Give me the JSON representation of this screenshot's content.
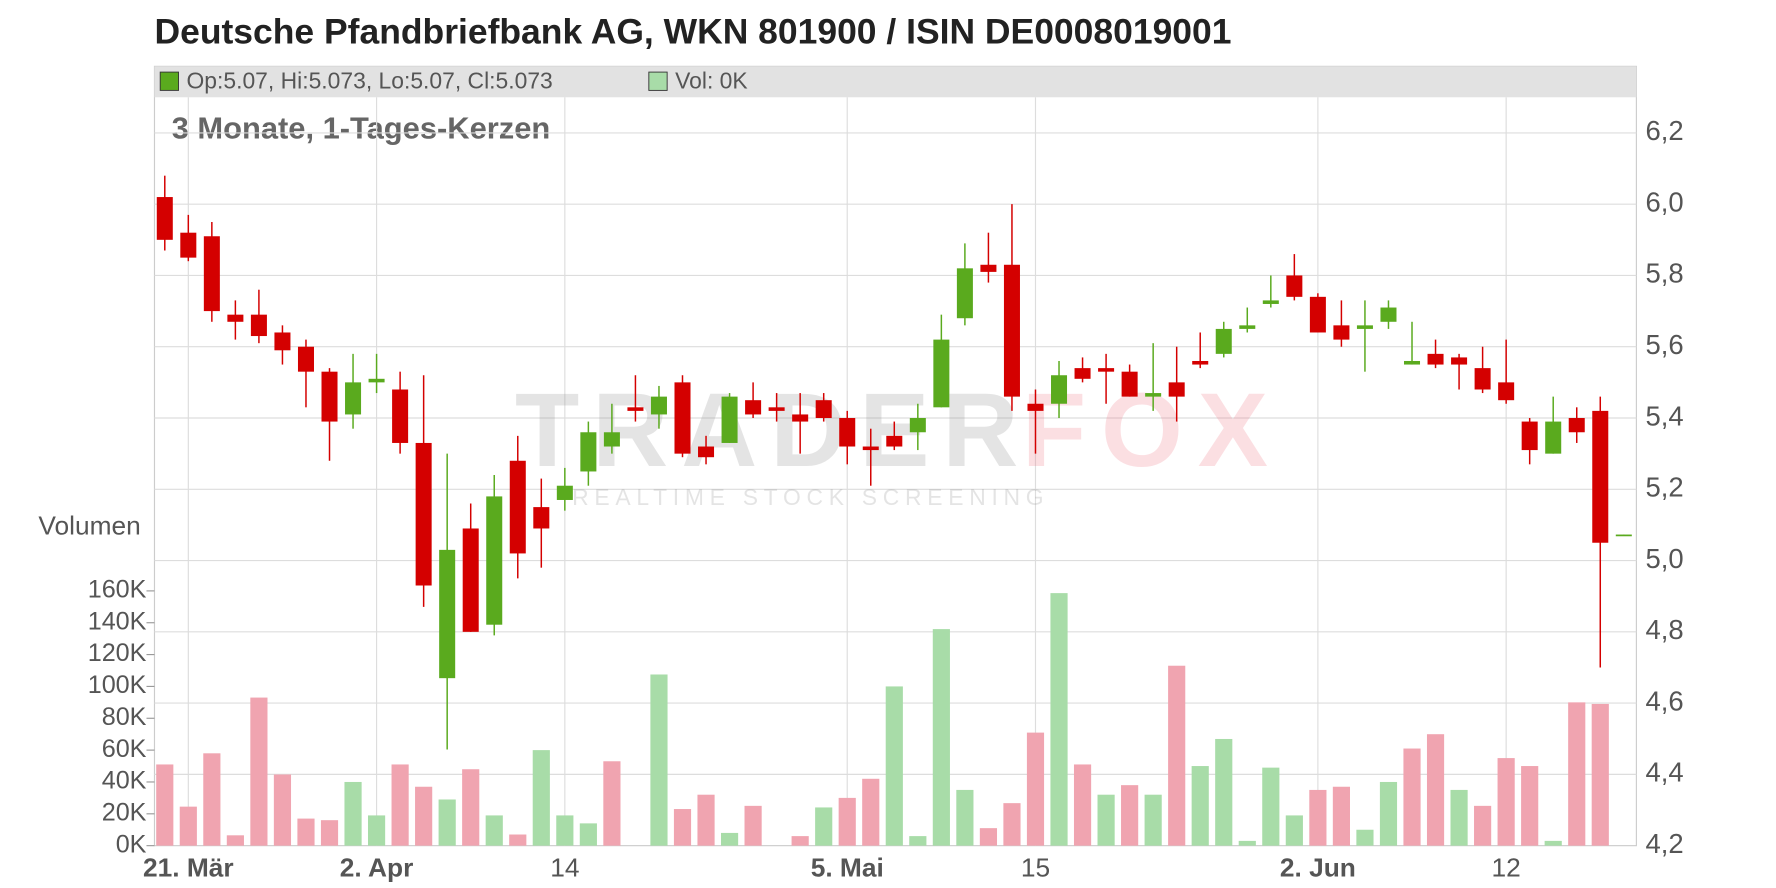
{
  "chart_data": {
    "type": "candlestick",
    "title": "Deutsche Pfandbriefbank AG, WKN 801900 / ISIN DE0008019001",
    "subtitle": "3 Monate, 1-Tages-Kerzen",
    "legend": [
      "Op:5.07, Hi:5.073, Lo:5.07, Cl:5.073",
      "Vol: 0K"
    ],
    "legend_colors": [
      "#5aaa1e",
      "#a8dca8"
    ],
    "volume_label": "Volumen",
    "watermark": [
      "TRADER",
      "FOX",
      "REALTIME STOCK SCREENING"
    ],
    "categories": [
      null,
      "21. Mär",
      null,
      null,
      null,
      null,
      null,
      null,
      null,
      "2. Apr",
      null,
      null,
      null,
      null,
      null,
      null,
      null,
      "14",
      null,
      null,
      null,
      null,
      null,
      null,
      null,
      null,
      null,
      null,
      null,
      "5. Mai",
      null,
      null,
      null,
      null,
      null,
      null,
      null,
      "15",
      null,
      null,
      null,
      null,
      null,
      null,
      null,
      null,
      null,
      null,
      null,
      "2. Jun",
      null,
      null,
      null,
      null,
      null,
      null,
      null,
      "12",
      null,
      null,
      null,
      null,
      null
    ],
    "open": [
      6.02,
      5.92,
      5.91,
      5.69,
      5.69,
      5.64,
      5.6,
      5.53,
      5.41,
      5.5,
      5.48,
      5.33,
      4.67,
      5.09,
      4.82,
      5.28,
      5.15,
      5.17,
      5.25,
      5.32,
      5.43,
      5.41,
      5.5,
      5.32,
      5.33,
      5.45,
      5.43,
      5.41,
      5.45,
      5.4,
      5.32,
      5.35,
      5.36,
      5.43,
      5.68,
      5.83,
      5.83,
      5.44,
      5.44,
      5.54,
      5.54,
      5.53,
      5.46,
      5.5,
      5.56,
      5.58,
      5.65,
      5.72,
      5.8,
      5.74,
      5.66,
      5.65,
      5.67,
      5.55,
      5.58,
      5.57,
      5.54,
      5.5,
      5.39,
      5.3,
      5.4,
      5.42,
      5.07
    ],
    "high": [
      6.08,
      5.97,
      5.95,
      5.73,
      5.76,
      5.66,
      5.62,
      5.54,
      5.58,
      5.58,
      5.53,
      5.52,
      5.3,
      5.16,
      5.24,
      5.35,
      5.23,
      5.26,
      5.39,
      5.44,
      5.52,
      5.49,
      5.52,
      5.35,
      5.47,
      5.5,
      5.47,
      5.47,
      5.47,
      5.42,
      5.37,
      5.39,
      5.44,
      5.69,
      5.89,
      5.92,
      6.0,
      5.48,
      5.56,
      5.57,
      5.58,
      5.55,
      5.61,
      5.6,
      5.64,
      5.67,
      5.71,
      5.8,
      5.86,
      5.75,
      5.73,
      5.73,
      5.73,
      5.67,
      5.62,
      5.58,
      5.6,
      5.62,
      5.4,
      5.46,
      5.43,
      5.46,
      5.073
    ],
    "low": [
      5.87,
      5.84,
      5.67,
      5.62,
      5.61,
      5.55,
      5.43,
      5.28,
      5.37,
      5.47,
      5.3,
      4.87,
      4.47,
      4.8,
      4.79,
      4.95,
      4.98,
      5.14,
      5.21,
      5.3,
      5.39,
      5.37,
      5.29,
      5.27,
      5.33,
      5.4,
      5.39,
      5.3,
      5.39,
      5.27,
      5.21,
      5.31,
      5.31,
      5.43,
      5.66,
      5.78,
      5.42,
      5.3,
      5.4,
      5.5,
      5.44,
      5.46,
      5.42,
      5.39,
      5.54,
      5.57,
      5.64,
      5.71,
      5.73,
      5.64,
      5.6,
      5.53,
      5.65,
      5.55,
      5.54,
      5.48,
      5.47,
      5.44,
      5.27,
      5.3,
      5.33,
      4.7,
      5.07
    ],
    "close": [
      5.9,
      5.85,
      5.7,
      5.67,
      5.63,
      5.59,
      5.53,
      5.39,
      5.5,
      5.51,
      5.33,
      4.93,
      5.03,
      4.8,
      5.18,
      5.02,
      5.09,
      5.21,
      5.36,
      5.36,
      5.42,
      5.46,
      5.3,
      5.29,
      5.46,
      5.41,
      5.42,
      5.39,
      5.4,
      5.32,
      5.31,
      5.32,
      5.4,
      5.62,
      5.82,
      5.81,
      5.46,
      5.42,
      5.52,
      5.51,
      5.53,
      5.46,
      5.47,
      5.46,
      5.55,
      5.65,
      5.66,
      5.73,
      5.74,
      5.64,
      5.62,
      5.66,
      5.71,
      5.56,
      5.55,
      5.55,
      5.48,
      5.45,
      5.31,
      5.39,
      5.36,
      5.05,
      5.073
    ],
    "up_color": "#5aaa1e",
    "down_color": "#d40000",
    "volume": [
      51000,
      24500,
      58000,
      6500,
      93000,
      44700,
      17000,
      16000,
      40000,
      19000,
      51000,
      37000,
      29000,
      48000,
      19000,
      7000,
      60000,
      19000,
      14000,
      53000,
      0,
      107500,
      23000,
      32000,
      8000,
      25000,
      0,
      6000,
      24000,
      30000,
      42000,
      100000,
      6000,
      136000,
      35000,
      11000,
      26700,
      71000,
      158600,
      51000,
      32000,
      38000,
      32000,
      113000,
      50000,
      67000,
      3000,
      49000,
      19000,
      35000,
      37000,
      10000,
      40000,
      61000,
      70000,
      35000,
      25000,
      55000,
      50000,
      3000,
      90000,
      89000,
      0
    ],
    "volume_colors": [
      "#f0a4b0",
      "#f0a4b0",
      "#f0a4b0",
      "#f0a4b0",
      "#f0a4b0",
      "#f0a4b0",
      "#f0a4b0",
      "#f0a4b0",
      "#a8dca8",
      "#a8dca8",
      "#f0a4b0",
      "#f0a4b0",
      "#a8dca8",
      "#f0a4b0",
      "#a8dca8",
      "#f0a4b0",
      "#a8dca8",
      "#a8dca8",
      "#a8dca8",
      "#f0a4b0",
      "#f0a4b0",
      "#a8dca8",
      "#f0a4b0",
      "#f0a4b0",
      "#a8dca8",
      "#f0a4b0",
      "#f0a4b0",
      "#f0a4b0",
      "#a8dca8",
      "#f0a4b0",
      "#f0a4b0",
      "#a8dca8",
      "#a8dca8",
      "#a8dca8",
      "#a8dca8",
      "#f0a4b0",
      "#f0a4b0",
      "#f0a4b0",
      "#a8dca8",
      "#f0a4b0",
      "#a8dca8",
      "#f0a4b0",
      "#a8dca8",
      "#f0a4b0",
      "#a8dca8",
      "#a8dca8",
      "#a8dca8",
      "#a8dca8",
      "#a8dca8",
      "#f0a4b0",
      "#f0a4b0",
      "#a8dca8",
      "#a8dca8",
      "#f0a4b0",
      "#f0a4b0",
      "#a8dca8",
      "#f0a4b0",
      "#f0a4b0",
      "#f0a4b0",
      "#a8dca8",
      "#f0a4b0",
      "#f0a4b0",
      "#a8dca8"
    ],
    "ylim": [
      4.2,
      6.3
    ],
    "yticks": [
      {
        "value": 4.2,
        "label": "4,2"
      },
      {
        "value": 4.4,
        "label": "4,4"
      },
      {
        "value": 4.6,
        "label": "4,6"
      },
      {
        "value": 4.8,
        "label": "4,8"
      },
      {
        "value": 5.0,
        "label": "5,0"
      },
      {
        "value": 5.2,
        "label": "5,2"
      },
      {
        "value": 5.4,
        "label": "5,4"
      },
      {
        "value": 5.6,
        "label": "5,6"
      },
      {
        "value": 5.8,
        "label": "5,8"
      },
      {
        "value": 6.0,
        "label": "6,0"
      },
      {
        "value": 6.2,
        "label": "6,2"
      }
    ],
    "y2lim": [
      0,
      470000
    ],
    "y2ticks": [
      {
        "value": 0,
        "label": "0K"
      },
      {
        "value": 20000,
        "label": "20K"
      },
      {
        "value": 40000,
        "label": "40K"
      },
      {
        "value": 60000,
        "label": "60K"
      },
      {
        "value": 80000,
        "label": "80K"
      },
      {
        "value": 100000,
        "label": "100K"
      },
      {
        "value": 120000,
        "label": "120K"
      },
      {
        "value": 140000,
        "label": "140K"
      },
      {
        "value": 160000,
        "label": "160K"
      }
    ],
    "grid": true
  }
}
